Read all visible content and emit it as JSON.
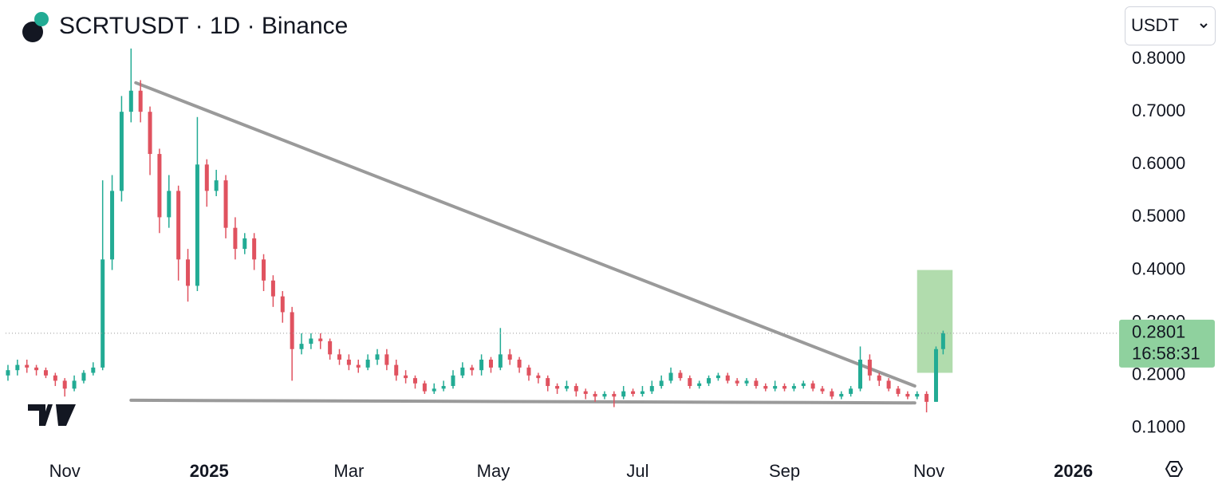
{
  "chart_data": {
    "type": "candlestick",
    "title": "SCRTUSDT · 1D · Binance",
    "currency": "USDT",
    "x": [
      0,
      4,
      8,
      12,
      16,
      20,
      24,
      28,
      32,
      36,
      40,
      44,
      48,
      52,
      56,
      60,
      64,
      68,
      72,
      76,
      80,
      84,
      88,
      92,
      96,
      100,
      104,
      108,
      112,
      116,
      120,
      124,
      128,
      132,
      136,
      140,
      144,
      148,
      152,
      156,
      160,
      164,
      168,
      172,
      176,
      180,
      184,
      188,
      192,
      196,
      200,
      204,
      208,
      212,
      216,
      220,
      224,
      228,
      232,
      236,
      240,
      244,
      248,
      252,
      256,
      260,
      264,
      268,
      272,
      276,
      280,
      284,
      288,
      292,
      296,
      300,
      304,
      308,
      312,
      316,
      320,
      324,
      328,
      332,
      336,
      340,
      344,
      348,
      352,
      356,
      360,
      364,
      368,
      372,
      376,
      380,
      384,
      388,
      392,
      395
    ],
    "open": [
      0.2,
      0.21,
      0.22,
      0.215,
      0.21,
      0.2,
      0.19,
      0.175,
      0.19,
      0.205,
      0.215,
      0.42,
      0.55,
      0.7,
      0.74,
      0.7,
      0.62,
      0.5,
      0.55,
      0.42,
      0.37,
      0.6,
      0.55,
      0.57,
      0.48,
      0.44,
      0.46,
      0.42,
      0.38,
      0.35,
      0.32,
      0.25,
      0.26,
      0.27,
      0.265,
      0.24,
      0.23,
      0.22,
      0.215,
      0.23,
      0.24,
      0.22,
      0.2,
      0.195,
      0.185,
      0.17,
      0.175,
      0.18,
      0.2,
      0.215,
      0.21,
      0.23,
      0.215,
      0.24,
      0.23,
      0.215,
      0.2,
      0.195,
      0.18,
      0.175,
      0.18,
      0.17,
      0.165,
      0.16,
      0.165,
      0.16,
      0.17,
      0.165,
      0.17,
      0.18,
      0.19,
      0.205,
      0.195,
      0.18,
      0.185,
      0.195,
      0.2,
      0.19,
      0.185,
      0.19,
      0.18,
      0.175,
      0.18,
      0.175,
      0.18,
      0.185,
      0.175,
      0.17,
      0.16,
      0.165,
      0.175,
      0.23,
      0.2,
      0.19,
      0.175,
      0.165,
      0.16,
      0.165,
      0.15,
      0.25
    ],
    "high": [
      0.22,
      0.23,
      0.23,
      0.22,
      0.215,
      0.205,
      0.195,
      0.2,
      0.21,
      0.225,
      0.57,
      0.58,
      0.73,
      0.82,
      0.76,
      0.71,
      0.63,
      0.58,
      0.56,
      0.44,
      0.69,
      0.61,
      0.59,
      0.58,
      0.5,
      0.47,
      0.47,
      0.43,
      0.39,
      0.36,
      0.33,
      0.28,
      0.28,
      0.28,
      0.27,
      0.25,
      0.24,
      0.23,
      0.24,
      0.25,
      0.25,
      0.23,
      0.21,
      0.2,
      0.19,
      0.185,
      0.19,
      0.21,
      0.225,
      0.22,
      0.24,
      0.235,
      0.29,
      0.25,
      0.235,
      0.22,
      0.205,
      0.2,
      0.185,
      0.19,
      0.185,
      0.175,
      0.17,
      0.17,
      0.17,
      0.18,
      0.175,
      0.18,
      0.19,
      0.2,
      0.215,
      0.21,
      0.2,
      0.19,
      0.2,
      0.205,
      0.205,
      0.195,
      0.195,
      0.195,
      0.185,
      0.19,
      0.185,
      0.185,
      0.19,
      0.19,
      0.18,
      0.175,
      0.17,
      0.18,
      0.255,
      0.24,
      0.205,
      0.195,
      0.18,
      0.17,
      0.17,
      0.17,
      0.255,
      0.285
    ],
    "low": [
      0.19,
      0.2,
      0.205,
      0.2,
      0.195,
      0.18,
      0.16,
      0.17,
      0.185,
      0.2,
      0.21,
      0.4,
      0.53,
      0.68,
      0.68,
      0.58,
      0.47,
      0.48,
      0.38,
      0.34,
      0.36,
      0.52,
      0.54,
      0.46,
      0.42,
      0.43,
      0.4,
      0.36,
      0.33,
      0.3,
      0.19,
      0.24,
      0.25,
      0.25,
      0.23,
      0.22,
      0.21,
      0.205,
      0.21,
      0.22,
      0.21,
      0.19,
      0.185,
      0.175,
      0.165,
      0.165,
      0.17,
      0.175,
      0.195,
      0.2,
      0.2,
      0.205,
      0.21,
      0.22,
      0.205,
      0.19,
      0.185,
      0.17,
      0.165,
      0.17,
      0.16,
      0.155,
      0.15,
      0.155,
      0.14,
      0.155,
      0.16,
      0.16,
      0.165,
      0.175,
      0.185,
      0.19,
      0.175,
      0.175,
      0.18,
      0.19,
      0.185,
      0.18,
      0.18,
      0.175,
      0.17,
      0.17,
      0.17,
      0.17,
      0.175,
      0.17,
      0.165,
      0.155,
      0.155,
      0.16,
      0.17,
      0.19,
      0.18,
      0.17,
      0.16,
      0.155,
      0.155,
      0.13,
      0.15,
      0.24
    ],
    "close": [
      0.21,
      0.22,
      0.215,
      0.21,
      0.2,
      0.19,
      0.175,
      0.19,
      0.205,
      0.215,
      0.42,
      0.55,
      0.7,
      0.74,
      0.7,
      0.62,
      0.5,
      0.55,
      0.42,
      0.37,
      0.6,
      0.55,
      0.57,
      0.48,
      0.44,
      0.46,
      0.42,
      0.38,
      0.35,
      0.32,
      0.25,
      0.26,
      0.27,
      0.265,
      0.24,
      0.23,
      0.22,
      0.215,
      0.23,
      0.24,
      0.22,
      0.2,
      0.195,
      0.185,
      0.17,
      0.175,
      0.18,
      0.2,
      0.215,
      0.21,
      0.23,
      0.215,
      0.24,
      0.23,
      0.215,
      0.2,
      0.195,
      0.18,
      0.175,
      0.18,
      0.17,
      0.165,
      0.16,
      0.165,
      0.16,
      0.17,
      0.165,
      0.17,
      0.18,
      0.19,
      0.205,
      0.195,
      0.18,
      0.185,
      0.195,
      0.2,
      0.19,
      0.185,
      0.19,
      0.18,
      0.175,
      0.18,
      0.175,
      0.18,
      0.185,
      0.175,
      0.17,
      0.16,
      0.165,
      0.175,
      0.23,
      0.2,
      0.19,
      0.175,
      0.165,
      0.16,
      0.165,
      0.15,
      0.25,
      0.2801
    ],
    "up_color": "#22ab94",
    "down_color": "#e0525f",
    "xlim": [
      -1,
      470
    ],
    "xticks": [
      {
        "value": 24,
        "label": "Nov"
      },
      {
        "value": 85,
        "label": "2025"
      },
      {
        "value": 144,
        "label": "Mar"
      },
      {
        "value": 205,
        "label": "May"
      },
      {
        "value": 266,
        "label": "Jul"
      },
      {
        "value": 328,
        "label": "Sep"
      },
      {
        "value": 389,
        "label": "Nov"
      },
      {
        "value": 450,
        "label": "2026"
      }
    ],
    "ylim": [
      0.05,
      0.912
    ],
    "yticks": [
      {
        "value": 0.1,
        "label": "0.1000"
      },
      {
        "value": 0.2,
        "label": "0.2000"
      },
      {
        "value": 0.3,
        "label": "0.3000"
      },
      {
        "value": 0.4,
        "label": "0.4000"
      },
      {
        "value": 0.5,
        "label": "0.5000"
      },
      {
        "value": 0.6,
        "label": "0.6000"
      },
      {
        "value": 0.7,
        "label": "0.7000"
      },
      {
        "value": 0.8,
        "label": "0.8000"
      }
    ],
    "trendlines": [
      {
        "x": [
          54,
          383
        ],
        "y": [
          0.755,
          0.18
        ],
        "color": "#9a9a9a"
      },
      {
        "x": [
          52,
          383
        ],
        "y": [
          0.153,
          0.148
        ],
        "color": "#9a9a9a"
      }
    ],
    "highlight_box": {
      "x": [
        384,
        399
      ],
      "y": [
        0.205,
        0.4
      ],
      "color": "#a8d8a4"
    },
    "last_price_label": "0.2801",
    "countdown": "16:58:31"
  }
}
